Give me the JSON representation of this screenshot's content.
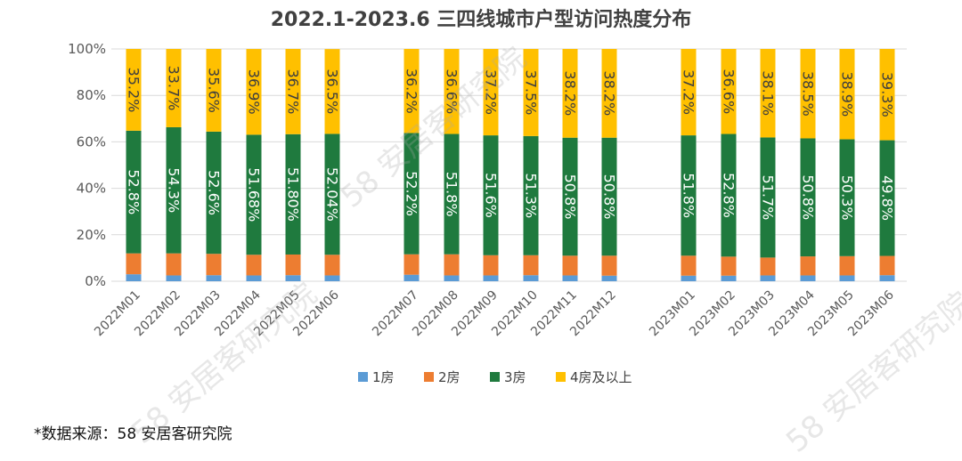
{
  "chart_data": {
    "type": "bar",
    "stacked": "percent",
    "title": "2022.1-2023.6  三四线城市户型访问热度分布",
    "categories": [
      "2022M01",
      "2022M02",
      "2022M03",
      "2022M04",
      "2022M05",
      "2022M06",
      "2022M07",
      "2022M08",
      "2022M09",
      "2022M10",
      "2022M11",
      "2022M12",
      "2023M01",
      "2023M02",
      "2023M03",
      "2023M04",
      "2023M05",
      "2023M06"
    ],
    "ylim": [
      0,
      100
    ],
    "yticks": [
      "0%",
      "20%",
      "40%",
      "60%",
      "80%",
      "100%"
    ],
    "grid": true,
    "legend_position": "bottom",
    "series": [
      {
        "name": "1房",
        "color": "#5b9bd5",
        "values": [
          3.0,
          2.5,
          2.6,
          2.5,
          2.6,
          2.5,
          2.8,
          2.5,
          2.5,
          2.6,
          2.5,
          2.4,
          2.4,
          2.4,
          2.5,
          2.5,
          2.5,
          2.6
        ]
      },
      {
        "name": "2房",
        "color": "#ed7d31",
        "values": [
          9.0,
          9.5,
          9.2,
          8.9,
          8.9,
          8.9,
          8.8,
          9.1,
          8.7,
          8.6,
          8.5,
          8.6,
          8.6,
          8.2,
          7.7,
          8.2,
          8.3,
          8.3
        ]
      },
      {
        "name": "3房",
        "color": "#1f7a3e",
        "values": [
          52.8,
          54.3,
          52.6,
          51.68,
          51.8,
          52.04,
          52.2,
          51.8,
          51.6,
          51.3,
          50.8,
          50.8,
          51.8,
          52.8,
          51.7,
          50.8,
          50.3,
          49.8
        ],
        "labels": [
          "52.8%",
          "54.3%",
          "52.6%",
          "51.68%",
          "51.80%",
          "52.04%",
          "52.2%",
          "51.8%",
          "51.6%",
          "51.3%",
          "50.8%",
          "50.8%",
          "51.8%",
          "52.8%",
          "51.7%",
          "50.8%",
          "50.3%",
          "49.8%"
        ]
      },
      {
        "name": "4房及以上",
        "color": "#ffc000",
        "values": [
          35.2,
          33.7,
          35.6,
          36.9,
          36.7,
          36.5,
          36.2,
          36.6,
          37.2,
          37.5,
          38.2,
          38.2,
          37.2,
          36.6,
          38.1,
          38.5,
          38.9,
          39.3
        ],
        "labels": [
          "35.2%",
          "33.7%",
          "35.6%",
          "36.9%",
          "36.7%",
          "36.5%",
          "36.2%",
          "36.6%",
          "37.2%",
          "37.5%",
          "38.2%",
          "38.2%",
          "37.2%",
          "36.6%",
          "38.1%",
          "38.5%",
          "38.9%",
          "39.3%"
        ]
      }
    ]
  },
  "footnote": "*数据来源：58 安居客研究院",
  "watermark": "58 安居客研究院"
}
